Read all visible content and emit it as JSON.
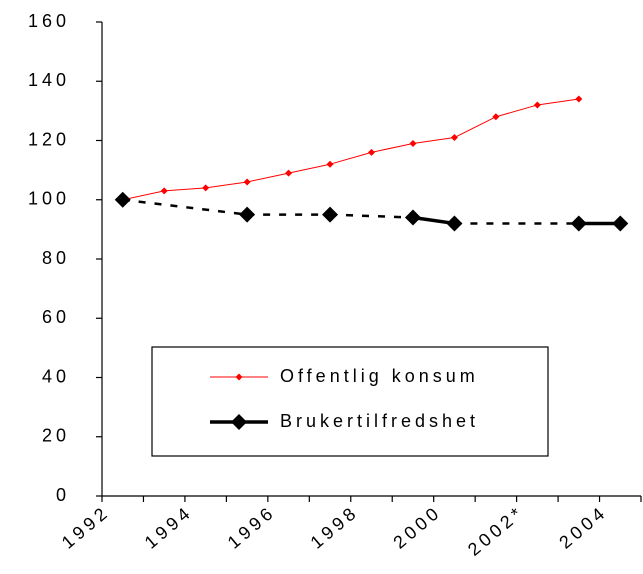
{
  "chart_data": {
    "type": "line",
    "categories": [
      "1992",
      null,
      "1994",
      null,
      "1996",
      null,
      "1998",
      null,
      "2000",
      null,
      "2002*",
      null,
      "2004"
    ],
    "series": [
      {
        "name": "Offentlig konsum",
        "color": "#ff0000",
        "values": [
          100,
          103,
          104,
          106,
          109,
          112,
          116,
          119,
          121,
          128,
          132,
          134,
          null
        ]
      },
      {
        "name": "Brukertilfredshet",
        "color": "#000000",
        "values": [
          100,
          null,
          null,
          95,
          null,
          95,
          null,
          94,
          92,
          null,
          null,
          92,
          92
        ],
        "gap_style": "dashed"
      }
    ],
    "ylim": [
      0,
      160
    ],
    "yticks": [
      0,
      20,
      40,
      60,
      80,
      100,
      120,
      140,
      160
    ],
    "grid": false,
    "legend": "lower center"
  }
}
